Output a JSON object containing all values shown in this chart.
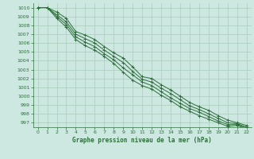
{
  "title": "Graphe pression niveau de la mer (hPa)",
  "background_color": "#cce8e0",
  "grid_color": "#aaccbb",
  "line_color": "#2d6e3a",
  "xlim": [
    -0.5,
    22.5
  ],
  "ylim": [
    996.5,
    1010.5
  ],
  "xticks": [
    0,
    1,
    2,
    3,
    4,
    5,
    6,
    7,
    8,
    9,
    10,
    11,
    12,
    13,
    14,
    15,
    16,
    17,
    18,
    19,
    20,
    21,
    22
  ],
  "yticks": [
    997,
    998,
    999,
    1000,
    1001,
    1002,
    1003,
    1004,
    1005,
    1006,
    1007,
    1008,
    1009,
    1010
  ],
  "series": [
    [
      1010.0,
      1010.0,
      1009.5,
      1008.8,
      1007.3,
      1006.9,
      1006.4,
      1005.6,
      1004.9,
      1004.3,
      1003.3,
      1002.2,
      1002.0,
      1001.3,
      1000.7,
      1000.0,
      999.3,
      998.8,
      998.4,
      997.8,
      997.3,
      997.0,
      996.7
    ],
    [
      1010.0,
      1010.0,
      1009.2,
      1008.4,
      1007.0,
      1006.5,
      1006.0,
      1005.2,
      1004.5,
      1003.8,
      1002.8,
      1001.9,
      1001.6,
      1000.9,
      1000.3,
      999.6,
      998.9,
      998.5,
      998.0,
      997.5,
      997.0,
      996.9,
      996.5
    ],
    [
      1010.0,
      1010.0,
      1009.0,
      1008.1,
      1006.7,
      1006.1,
      1005.6,
      1004.8,
      1004.1,
      1003.2,
      1002.4,
      1001.6,
      1001.2,
      1000.5,
      999.8,
      999.2,
      998.6,
      998.2,
      997.7,
      997.2,
      996.8,
      996.8,
      996.4
    ],
    [
      1010.0,
      1010.0,
      1008.8,
      1007.8,
      1006.4,
      1005.7,
      1005.2,
      1004.5,
      1003.7,
      1002.7,
      1001.8,
      1001.2,
      1000.8,
      1000.1,
      999.5,
      998.8,
      998.3,
      997.8,
      997.4,
      997.0,
      996.6,
      996.7,
      996.3
    ]
  ]
}
